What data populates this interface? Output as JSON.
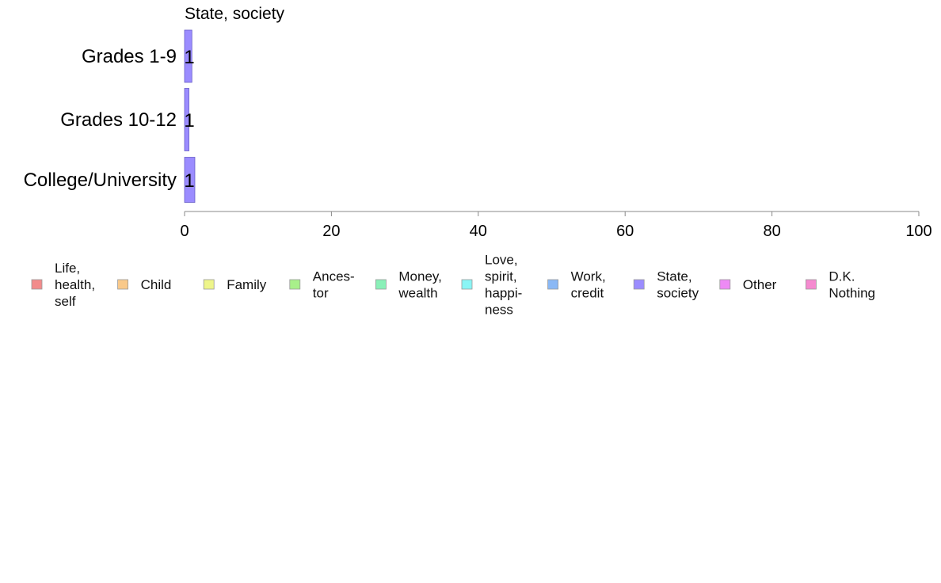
{
  "chart_data": {
    "type": "bar",
    "orientation": "horizontal",
    "title": "State, society",
    "categories": [
      "Grades 1-9",
      "Grades 10-12",
      "College/University"
    ],
    "series": [
      {
        "name": "State, society",
        "values": [
          1.0,
          0.6,
          1.4
        ],
        "labels": [
          "1",
          "1",
          "1"
        ],
        "color": "#9b8cff"
      }
    ],
    "xlim": [
      0,
      100
    ],
    "xticks": [
      0,
      20,
      40,
      60,
      80,
      100
    ],
    "grid": false,
    "legend": {
      "placement": "bottom",
      "entries": [
        {
          "name": "Life,\nhealth,\nself",
          "color": "#f28b8b"
        },
        {
          "name": "Child",
          "color": "#f9c98a"
        },
        {
          "name": "Family",
          "color": "#eef58a"
        },
        {
          "name": "Ances-\ntor",
          "color": "#a8f08a"
        },
        {
          "name": "Money,\nwealth",
          "color": "#8af0b8"
        },
        {
          "name": "Love,\nspirit,\nhappi-\nness",
          "color": "#8af5f5"
        },
        {
          "name": "Work,\ncredit",
          "color": "#8ab8f5"
        },
        {
          "name": "State,\nsociety",
          "color": "#9b8cff"
        },
        {
          "name": "Other",
          "color": "#ee8af5"
        },
        {
          "name": "D.K.\nNothing",
          "color": "#f58ad0"
        }
      ]
    }
  }
}
